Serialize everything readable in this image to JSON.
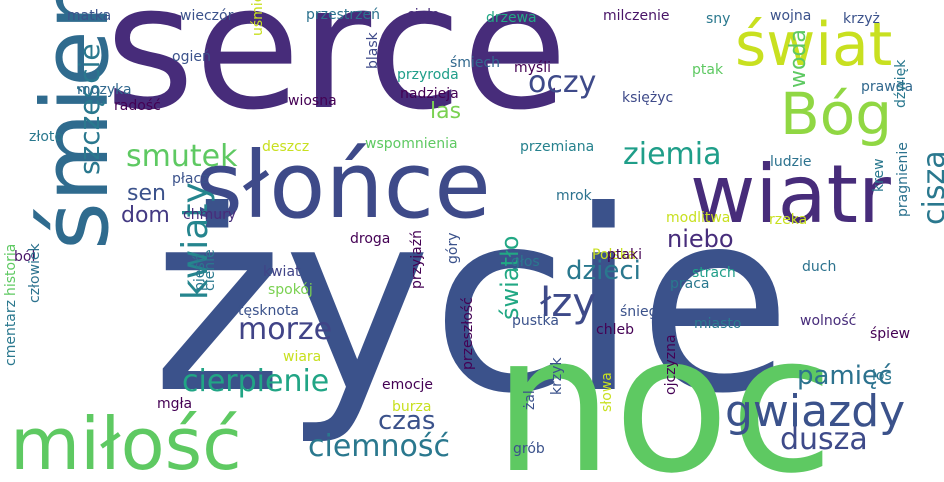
{
  "words": [
    {
      "text": "życie",
      "color": "#3b528b"
    },
    {
      "text": "serce",
      "color": "#472c7a"
    },
    {
      "text": "noc",
      "color": "#5ec962"
    },
    {
      "text": "śmierć",
      "color": "#2f6b8e"
    },
    {
      "text": "słońce",
      "color": "#3e4a89"
    },
    {
      "text": "miłość",
      "color": "#5ec962"
    },
    {
      "text": "wiatr",
      "color": "#472c7a"
    },
    {
      "text": "świat",
      "color": "#c8e020"
    },
    {
      "text": "Bóg",
      "color": "#90d743"
    },
    {
      "text": "kwiaty",
      "color": "#25858e"
    },
    {
      "text": "gwiazdy",
      "color": "#3b528b"
    },
    {
      "text": "cierpienie",
      "color": "#21a585"
    },
    {
      "text": "łzy",
      "color": "#3e4a89"
    },
    {
      "text": "szczęście",
      "color": "#2a788e"
    },
    {
      "text": "morze",
      "color": "#414487"
    },
    {
      "text": "ciemność",
      "color": "#2a788e"
    },
    {
      "text": "ziemia",
      "color": "#1f9e89"
    },
    {
      "text": "smutek",
      "color": "#5ec962"
    },
    {
      "text": "oczy",
      "color": "#3e4a89"
    },
    {
      "text": "cisza",
      "color": "#2a788e"
    },
    {
      "text": "dusza",
      "color": "#3e4a89"
    },
    {
      "text": "dzieci",
      "color": "#2a788e"
    },
    {
      "text": "czas",
      "color": "#3b528b"
    },
    {
      "text": "pamięć",
      "color": "#2c728e"
    },
    {
      "text": "światło",
      "color": "#22a884"
    },
    {
      "text": "niebo",
      "color": "#472d7b"
    },
    {
      "text": "dom",
      "color": "#443a83"
    },
    {
      "text": "sen",
      "color": "#3b528b"
    },
    {
      "text": "woda",
      "color": "#5ec962"
    },
    {
      "text": "las",
      "color": "#7ad151"
    },
    {
      "text": "kwiat",
      "color": "#414487"
    },
    {
      "text": "droga",
      "color": "#440154"
    },
    {
      "text": "chmury",
      "color": "#472c7a"
    },
    {
      "text": "płacz",
      "color": "#3b528b"
    },
    {
      "text": "ból",
      "color": "#481467"
    },
    {
      "text": "spokój",
      "color": "#7ad151"
    },
    {
      "text": "tęsknota",
      "color": "#3b528b"
    },
    {
      "text": "wiara",
      "color": "#c8e020"
    },
    {
      "text": "burza",
      "color": "#c8e020"
    },
    {
      "text": "emocje",
      "color": "#440154"
    },
    {
      "text": "mgła",
      "color": "#440154"
    },
    {
      "text": "matka",
      "color": "#3b528b"
    },
    {
      "text": "wieczór",
      "color": "#3b528b"
    },
    {
      "text": "przestrzeń",
      "color": "#2c728e"
    },
    {
      "text": "ciało",
      "color": "#472c7a"
    },
    {
      "text": "drzewa",
      "color": "#22a884"
    },
    {
      "text": "milczenie",
      "color": "#481467"
    },
    {
      "text": "wojna",
      "color": "#3b528b"
    },
    {
      "text": "sny",
      "color": "#2a788e"
    },
    {
      "text": "krzyż",
      "color": "#3b528b"
    },
    {
      "text": "ogień",
      "color": "#3b528b"
    },
    {
      "text": "uśmiech",
      "color": "#c8e020"
    },
    {
      "text": "blask",
      "color": "#3e4a89"
    },
    {
      "text": "śmiech",
      "color": "#31688e"
    },
    {
      "text": "przyroda",
      "color": "#1f9e89"
    },
    {
      "text": "myśli",
      "color": "#440154"
    },
    {
      "text": "nadzieja",
      "color": "#440154"
    },
    {
      "text": "ptak",
      "color": "#5ec962"
    },
    {
      "text": "księżyc",
      "color": "#3e4a89"
    },
    {
      "text": "muzyka",
      "color": "#31688e"
    },
    {
      "text": "radość",
      "color": "#440154"
    },
    {
      "text": "wiosna",
      "color": "#440154"
    },
    {
      "text": "prawda",
      "color": "#31688e"
    },
    {
      "text": "dźwięk",
      "color": "#2a788e"
    },
    {
      "text": "złoto",
      "color": "#2a788e"
    },
    {
      "text": "deszcz",
      "color": "#c8e020"
    },
    {
      "text": "wspomnienia",
      "color": "#5ec962"
    },
    {
      "text": "przemiana",
      "color": "#26828e"
    },
    {
      "text": "ludzie",
      "color": "#2c728e"
    },
    {
      "text": "mrok",
      "color": "#2c728e"
    },
    {
      "text": "krew",
      "color": "#2a788e"
    },
    {
      "text": "modlitwa",
      "color": "#c8e020"
    },
    {
      "text": "rzeka",
      "color": "#c8e020"
    },
    {
      "text": "pragnienie",
      "color": "#2c728e"
    },
    {
      "text": "historia",
      "color": "#5ec962"
    },
    {
      "text": "głos",
      "color": "#2a788e"
    },
    {
      "text": "Polska",
      "color": "#c8e020"
    },
    {
      "text": "ptaki",
      "color": "#440154"
    },
    {
      "text": "strach",
      "color": "#1f9e89"
    },
    {
      "text": "duch",
      "color": "#2c728e"
    },
    {
      "text": "góry",
      "color": "#3b528b"
    },
    {
      "text": "praca",
      "color": "#2a788e"
    },
    {
      "text": "pieśń",
      "color": "#2a788e"
    },
    {
      "text": "cienie",
      "color": "#2a788e"
    },
    {
      "text": "człowiek",
      "color": "#2c728e"
    },
    {
      "text": "przyjaźń",
      "color": "#440154"
    },
    {
      "text": "śnieg",
      "color": "#3b528b"
    },
    {
      "text": "pustka",
      "color": "#3b528b"
    },
    {
      "text": "miasto",
      "color": "#2a788e"
    },
    {
      "text": "wolność",
      "color": "#472c7a"
    },
    {
      "text": "śpiew",
      "color": "#440154"
    },
    {
      "text": "chleb",
      "color": "#440154"
    },
    {
      "text": "cmentarz",
      "color": "#2a788e"
    },
    {
      "text": "przeszłość",
      "color": "#440154"
    },
    {
      "text": "los",
      "color": "#2a788e"
    },
    {
      "text": "żal",
      "color": "#3b528b"
    },
    {
      "text": "krzyk",
      "color": "#3b528b"
    },
    {
      "text": "słowa",
      "color": "#c8e020"
    },
    {
      "text": "ojczyzna",
      "color": "#440154"
    },
    {
      "text": "grób",
      "color": "#3b528b"
    }
  ]
}
